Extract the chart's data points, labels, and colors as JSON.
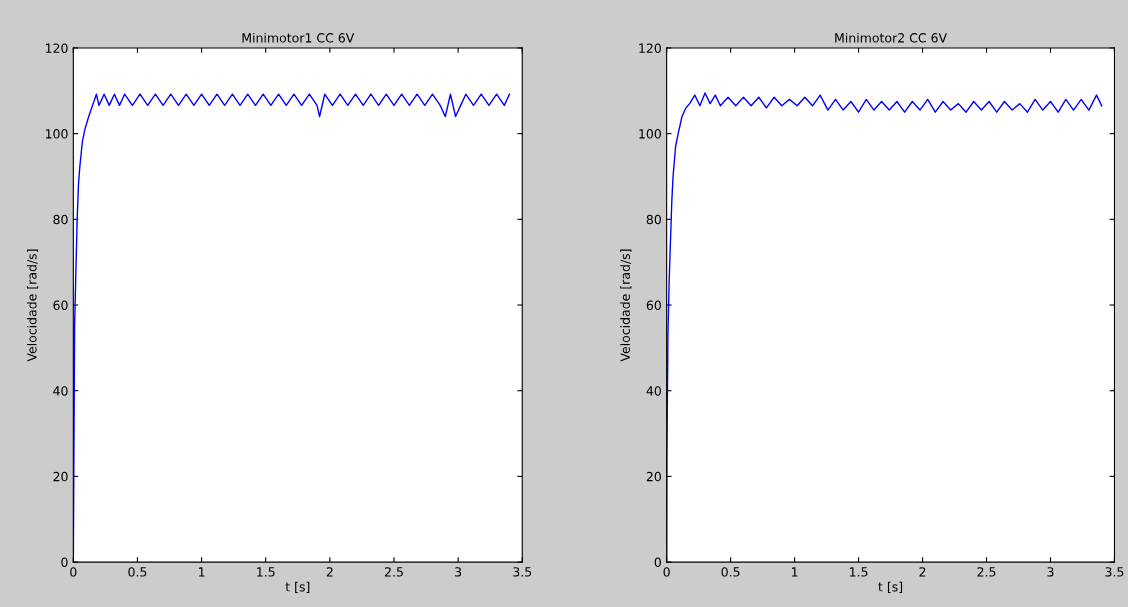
{
  "chart_data": [
    {
      "type": "line",
      "title": "Minimotor1 CC 6V",
      "xlabel": "t [s]",
      "ylabel": "Velocidade [rad/s]",
      "xlim": [
        0,
        3.5
      ],
      "ylim": [
        0,
        120
      ],
      "xticks": [
        0,
        0.5,
        1,
        1.5,
        2,
        2.5,
        3,
        3.5
      ],
      "yticks": [
        0,
        20,
        40,
        60,
        80,
        100,
        120
      ],
      "grid": false,
      "legend": false,
      "series": [
        {
          "color": "#0000ff",
          "x": [
            0,
            0.01,
            0.02,
            0.03,
            0.04,
            0.05,
            0.07,
            0.09,
            0.12,
            0.15,
            0.18,
            0.2,
            0.24,
            0.28,
            0.32,
            0.36,
            0.4,
            0.46,
            0.52,
            0.58,
            0.64,
            0.7,
            0.76,
            0.82,
            0.88,
            0.94,
            1.0,
            1.06,
            1.12,
            1.18,
            1.24,
            1.3,
            1.36,
            1.42,
            1.48,
            1.54,
            1.6,
            1.66,
            1.72,
            1.78,
            1.84,
            1.9,
            1.92,
            1.96,
            2.02,
            2.08,
            2.14,
            2.2,
            2.26,
            2.32,
            2.38,
            2.44,
            2.5,
            2.56,
            2.62,
            2.68,
            2.74,
            2.8,
            2.86,
            2.9,
            2.94,
            2.98,
            3.02,
            3.06,
            3.12,
            3.18,
            3.24,
            3.3,
            3.36,
            3.4
          ],
          "values": [
            0,
            55,
            68,
            80,
            88,
            92,
            98,
            101,
            104,
            106.6,
            109.2,
            106.6,
            109.2,
            106.6,
            109.2,
            106.6,
            109.2,
            106.6,
            109.2,
            106.6,
            109.2,
            106.6,
            109.2,
            106.6,
            109.2,
            106.6,
            109.2,
            106.6,
            109.2,
            106.6,
            109.2,
            106.6,
            109.2,
            106.6,
            109.2,
            106.6,
            109.2,
            106.6,
            109.2,
            106.6,
            109.2,
            106.6,
            104,
            109.2,
            106.6,
            109.2,
            106.6,
            109.2,
            106.6,
            109.2,
            106.6,
            109.2,
            106.6,
            109.2,
            106.6,
            109.2,
            106.6,
            109.2,
            106.6,
            104,
            109.2,
            104,
            106.6,
            109.2,
            106.6,
            109.2,
            106.6,
            109.2,
            106.6,
            109.2
          ]
        }
      ]
    },
    {
      "type": "line",
      "title": "Minimotor2 CC 6V",
      "xlabel": "t [s]",
      "ylabel": "Velocidade [rad/s]",
      "xlim": [
        0,
        3.5
      ],
      "ylim": [
        0,
        120
      ],
      "xticks": [
        0,
        0.5,
        1,
        1.5,
        2,
        2.5,
        3,
        3.5
      ],
      "yticks": [
        0,
        20,
        40,
        60,
        80,
        100,
        120
      ],
      "grid": false,
      "legend": false,
      "series": [
        {
          "color": "#0000ff",
          "x": [
            0,
            0.002,
            0.01,
            0.02,
            0.03,
            0.04,
            0.05,
            0.07,
            0.09,
            0.12,
            0.15,
            0.18,
            0.22,
            0.26,
            0.3,
            0.34,
            0.38,
            0.42,
            0.48,
            0.54,
            0.6,
            0.66,
            0.72,
            0.78,
            0.84,
            0.9,
            0.96,
            1.02,
            1.08,
            1.14,
            1.2,
            1.26,
            1.32,
            1.38,
            1.44,
            1.5,
            1.56,
            1.62,
            1.68,
            1.74,
            1.8,
            1.86,
            1.92,
            1.98,
            2.04,
            2.1,
            2.16,
            2.22,
            2.28,
            2.34,
            2.4,
            2.46,
            2.52,
            2.58,
            2.64,
            2.7,
            2.76,
            2.82,
            2.88,
            2.94,
            3.0,
            3.06,
            3.12,
            3.18,
            3.24,
            3.3,
            3.36,
            3.4
          ],
          "values": [
            0,
            25,
            53,
            66,
            75,
            84,
            90,
            97,
            100,
            104,
            106,
            107,
            109,
            106.5,
            109.5,
            107,
            109,
            106.5,
            108.5,
            106.5,
            108.5,
            106.5,
            108.5,
            106,
            108.5,
            106.5,
            108,
            106.5,
            108.5,
            106.5,
            109,
            105.5,
            108,
            105.5,
            107.5,
            105,
            108,
            105.5,
            107.5,
            105.5,
            107.5,
            105,
            107.5,
            105.5,
            108,
            105,
            107.5,
            105.5,
            107,
            105,
            107.5,
            105.5,
            107.5,
            105,
            107.5,
            105.5,
            107,
            105,
            108,
            105.5,
            107.5,
            105,
            108,
            105.5,
            108,
            105.5,
            109,
            106.5
          ]
        }
      ]
    }
  ]
}
